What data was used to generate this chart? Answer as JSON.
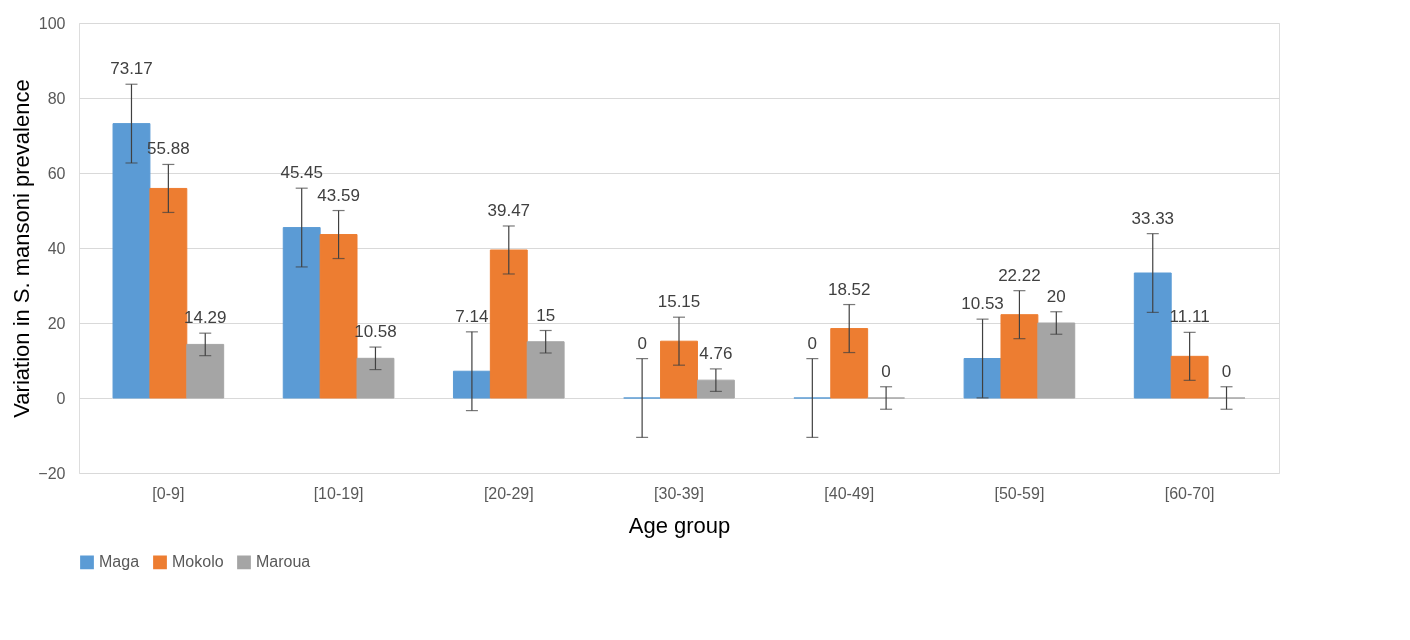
{
  "chart_data": {
    "type": "bar",
    "xlabel": "Age group",
    "ylabel": "Variation in S. mansoni prevalence",
    "categories": [
      "[0-9]",
      "[10-19]",
      "[20-29]",
      "[30-39]",
      "[40-49]",
      "[50-59]",
      "[60-70]"
    ],
    "series": [
      {
        "name": "Maga",
        "color": "#5b9bd5",
        "values": [
          73.17,
          45.45,
          7.14,
          0,
          0,
          10.53,
          33.33
        ],
        "errors": [
          10.5,
          10.5,
          10.5,
          10.5,
          10.5,
          10.5,
          10.5
        ]
      },
      {
        "name": "Mokolo",
        "color": "#ed7d31",
        "values": [
          55.88,
          43.59,
          39.47,
          15.15,
          18.52,
          22.22,
          11.11
        ],
        "errors": [
          6.4,
          6.4,
          6.4,
          6.4,
          6.4,
          6.4,
          6.4
        ]
      },
      {
        "name": "Maroua",
        "color": "#a5a5a5",
        "values": [
          14.29,
          10.58,
          15,
          4.76,
          0,
          20,
          0
        ],
        "errors": [
          3,
          3,
          3,
          3,
          3,
          3,
          3
        ]
      }
    ],
    "ylim": [
      -20,
      100
    ],
    "yticks": [
      -20,
      0,
      20,
      40,
      60,
      80,
      100
    ],
    "grid": "y",
    "legend": "bottom",
    "data_labels": true
  }
}
